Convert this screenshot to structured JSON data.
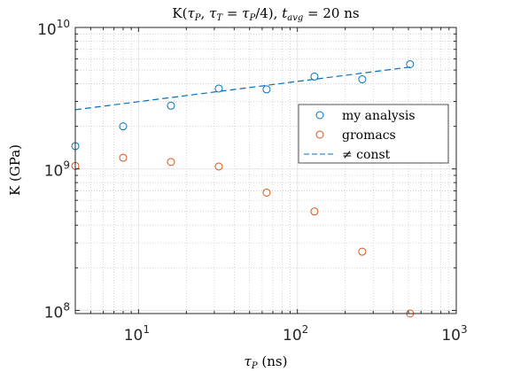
{
  "colors": {
    "series1": "#0072bd",
    "series2": "#d95319",
    "fit": "#0072bd",
    "axis": "#262626"
  },
  "chart_data": {
    "type": "scatter",
    "title_parts": {
      "main": "K(",
      "tau": "τ",
      "sub_p": "P",
      "comma": ", ",
      "tau2": "τ",
      "sub_t": "T",
      "eq": " = ",
      "tau3": "τ",
      "sub_p2": "P",
      "tail": "/4), ",
      "t": "t",
      "sub_avg": "avg",
      "val": " = 20 ns"
    },
    "xlabel_parts": {
      "tau": "τ",
      "sub": "P",
      "unit": " (ns)"
    },
    "ylabel": "K (GPa)",
    "xscale": "log",
    "yscale": "log",
    "xlim": [
      4,
      1000
    ],
    "ylim": [
      95000000,
      10000000000
    ],
    "grid": true,
    "x_ticks": [
      {
        "value": 10,
        "base": "10",
        "exp": "1"
      },
      {
        "value": 100,
        "base": "10",
        "exp": "2"
      },
      {
        "value": 1000,
        "base": "10",
        "exp": "3"
      }
    ],
    "y_ticks": [
      {
        "value": 100000000,
        "base": "10",
        "exp": "8"
      },
      {
        "value": 1000000000,
        "base": "10",
        "exp": "9"
      },
      {
        "value": 10000000000,
        "base": "10",
        "exp": "10"
      }
    ],
    "legend_position": "right",
    "series": [
      {
        "name": "my analysis",
        "kind": "markers",
        "x": [
          4,
          8,
          16,
          32,
          64,
          128,
          256,
          512
        ],
        "y": [
          1450000000,
          2000000000,
          2800000000,
          3700000000,
          3650000000,
          4500000000,
          4300000000,
          5500000000
        ]
      },
      {
        "name": "gromacs",
        "kind": "markers",
        "x": [
          4,
          8,
          16,
          32,
          64,
          128,
          256,
          512
        ],
        "y": [
          1050000000,
          1200000000,
          1120000000,
          1040000000,
          680000000,
          500000000,
          260000000,
          95000000
        ]
      },
      {
        "name": "≠ const",
        "kind": "dashed-line",
        "x": [
          4,
          512
        ],
        "y": [
          2620000000,
          5250000000
        ]
      }
    ]
  }
}
